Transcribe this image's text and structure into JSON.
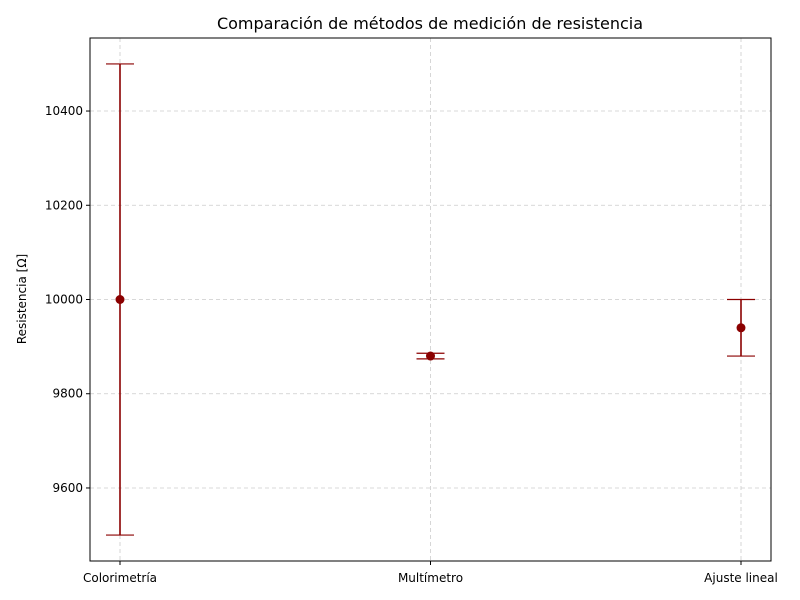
{
  "chart_data": {
    "type": "errorbar",
    "title": "Comparación de métodos de medición de resistencia",
    "xlabel": "",
    "ylabel": "Resistencia [Ω]",
    "categories": [
      "Colorimetría",
      "Multímetro",
      "Ajuste lineal"
    ],
    "values": [
      10000,
      9880,
      9940
    ],
    "errors": [
      500,
      6,
      60
    ],
    "ylim": [
      9445,
      10555
    ],
    "yticks": [
      9600,
      9800,
      10000,
      10200,
      10400
    ],
    "grid": true,
    "legend": "none",
    "color": "#8b0000"
  }
}
